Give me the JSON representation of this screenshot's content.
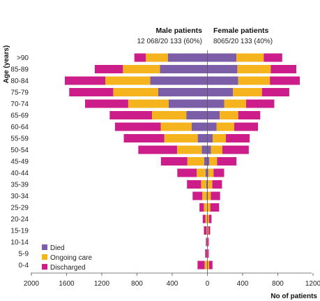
{
  "chart_data": {
    "type": "bar",
    "orientation": "horizontal-stacked-population-pyramid",
    "ylabel": "Age (years)",
    "xlabel": "No of patients",
    "xlim": [
      -2000,
      1200
    ],
    "xticks": [
      -2000,
      -1600,
      -1200,
      -800,
      -400,
      0,
      400,
      800,
      1200
    ],
    "xtick_labels": [
      "2000",
      "1600",
      "1200",
      "800",
      "400",
      "0",
      "400",
      "800",
      "1200"
    ],
    "left_header": "Male patients",
    "left_subheader": "12 068/20 133 (60%)",
    "right_header": "Female patients",
    "right_subheader": "8065/20 133 (40%)",
    "legend_position": "bottom-left",
    "categories": [
      ">90",
      "85-89",
      "80-84",
      "75-79",
      "70-74",
      "65-69",
      "60-64",
      "55-59",
      "50-54",
      "45-49",
      "40-44",
      "35-39",
      "30-34",
      "25-29",
      "20-24",
      "15-19",
      "10-14",
      "5-9",
      "0-4"
    ],
    "series": [
      {
        "name": "Died",
        "color": "#7b5ea7",
        "male": [
          450,
          540,
          650,
          560,
          440,
          240,
          180,
          110,
          65,
          38,
          22,
          12,
          8,
          5,
          3,
          2,
          1,
          1,
          2
        ],
        "female": [
          330,
          340,
          350,
          290,
          190,
          140,
          105,
          60,
          40,
          20,
          10,
          6,
          4,
          3,
          2,
          1,
          1,
          1,
          3
        ]
      },
      {
        "name": "Ongoing care",
        "color": "#f5b41e",
        "male": [
          250,
          420,
          510,
          510,
          460,
          390,
          350,
          380,
          280,
          190,
          100,
          60,
          50,
          35,
          20,
          8,
          4,
          4,
          30
        ],
        "female": [
          310,
          380,
          360,
          330,
          250,
          210,
          200,
          150,
          130,
          90,
          60,
          50,
          35,
          30,
          15,
          10,
          5,
          5,
          15
        ]
      },
      {
        "name": "Discharged",
        "color": "#cc1d8a",
        "male": [
          130,
          320,
          460,
          500,
          490,
          480,
          520,
          460,
          440,
          300,
          220,
          160,
          110,
          50,
          30,
          30,
          12,
          20,
          80
        ],
        "female": [
          210,
          290,
          340,
          310,
          320,
          250,
          270,
          270,
          300,
          220,
          120,
          110,
          105,
          100,
          30,
          20,
          10,
          10,
          40
        ]
      }
    ]
  }
}
